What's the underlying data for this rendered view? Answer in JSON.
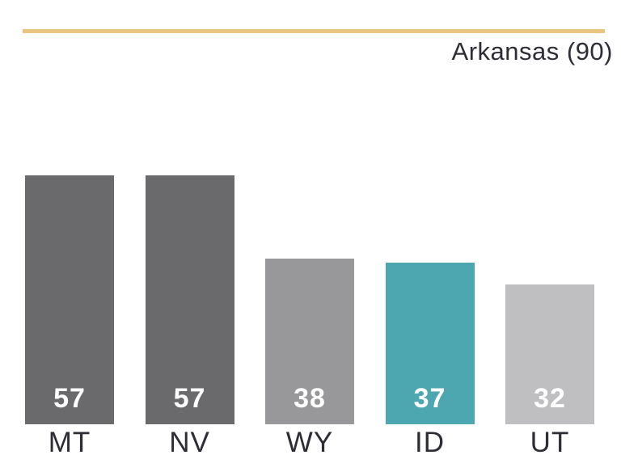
{
  "header": {
    "title": "Arkansas (90)"
  },
  "chart_data": {
    "type": "bar",
    "categories": [
      "MT",
      "NV",
      "WY",
      "ID",
      "UT"
    ],
    "values": [
      57,
      57,
      38,
      37,
      32
    ],
    "title": "Arkansas (90)",
    "xlabel": "",
    "ylabel": "",
    "ylim": [
      0,
      57
    ],
    "grid": false,
    "legend_position": "none",
    "value_label_position": "inside-bottom",
    "bar_colors": [
      "#6a6a6c",
      "#6a6a6c",
      "#98989b",
      "#4da7b0",
      "#bfbfc2"
    ],
    "highlighted_category": "ID"
  },
  "colors": {
    "accent_rule": "#e9c581",
    "bar_dark": "#6a6a6c",
    "bar_medium": "#98989b",
    "bar_light": "#bfbfc2",
    "bar_highlight": "#4da7b0",
    "label_text": "#2d2d35",
    "value_text": "#ffffff",
    "background": "#ffffff"
  }
}
